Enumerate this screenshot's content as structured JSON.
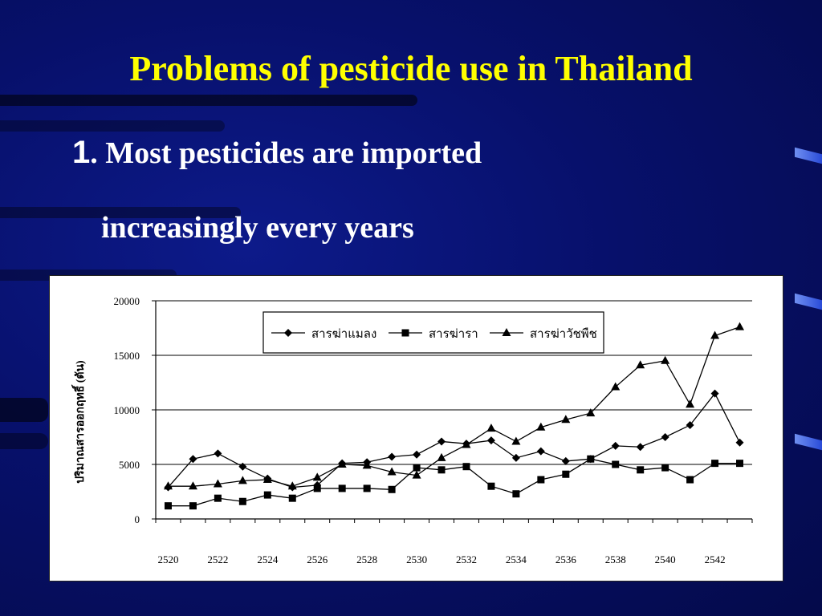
{
  "slide": {
    "title": "Problems of pesticide use in Thailand",
    "point_number": "1",
    "point_line1": ". Most pesticides are imported",
    "point_line2": "increasingly every years",
    "title_color": "#ffff00",
    "text_color": "#ffffff",
    "background_color": "#07106b"
  },
  "chart_data": {
    "type": "line",
    "title": "",
    "xlabel": "",
    "ylabel": "ปริมาณสารออกฤทธิ์ (ตัน)",
    "ylim": [
      0,
      20000
    ],
    "yticks": [
      0,
      5000,
      10000,
      15000,
      20000
    ],
    "xticks": [
      2520,
      2522,
      2524,
      2526,
      2528,
      2530,
      2532,
      2534,
      2536,
      2538,
      2540,
      2542
    ],
    "grid": "horizontal",
    "legend": "top-center",
    "x": [
      2520,
      2521,
      2522,
      2523,
      2524,
      2525,
      2526,
      2527,
      2528,
      2529,
      2530,
      2531,
      2532,
      2533,
      2534,
      2535,
      2536,
      2537,
      2538,
      2539,
      2540,
      2541,
      2542,
      2543
    ],
    "series": [
      {
        "name": "สารฆ่าแมลง",
        "marker": "diamond",
        "values": [
          2900,
          5500,
          6000,
          4800,
          3700,
          2900,
          3100,
          5100,
          5200,
          5700,
          5900,
          7100,
          6900,
          7200,
          5600,
          6200,
          5300,
          5500,
          6700,
          6600,
          7500,
          8600,
          11500,
          7000
        ]
      },
      {
        "name": "สารฆ่ารา",
        "marker": "square",
        "values": [
          1200,
          1200,
          1900,
          1600,
          2200,
          1900,
          2800,
          2800,
          2800,
          2700,
          4700,
          4500,
          4800,
          3000,
          2300,
          3600,
          4100,
          5500,
          5000,
          4500,
          4700,
          3600,
          5100,
          5100
        ]
      },
      {
        "name": "สารฆ่าวัชพืช",
        "marker": "triangle",
        "values": [
          3000,
          3000,
          3200,
          3500,
          3600,
          3000,
          3800,
          5000,
          4900,
          4300,
          4000,
          5600,
          6800,
          8300,
          7100,
          8400,
          9100,
          9700,
          12100,
          14100,
          14500,
          10500,
          16800,
          17600
        ]
      }
    ]
  }
}
